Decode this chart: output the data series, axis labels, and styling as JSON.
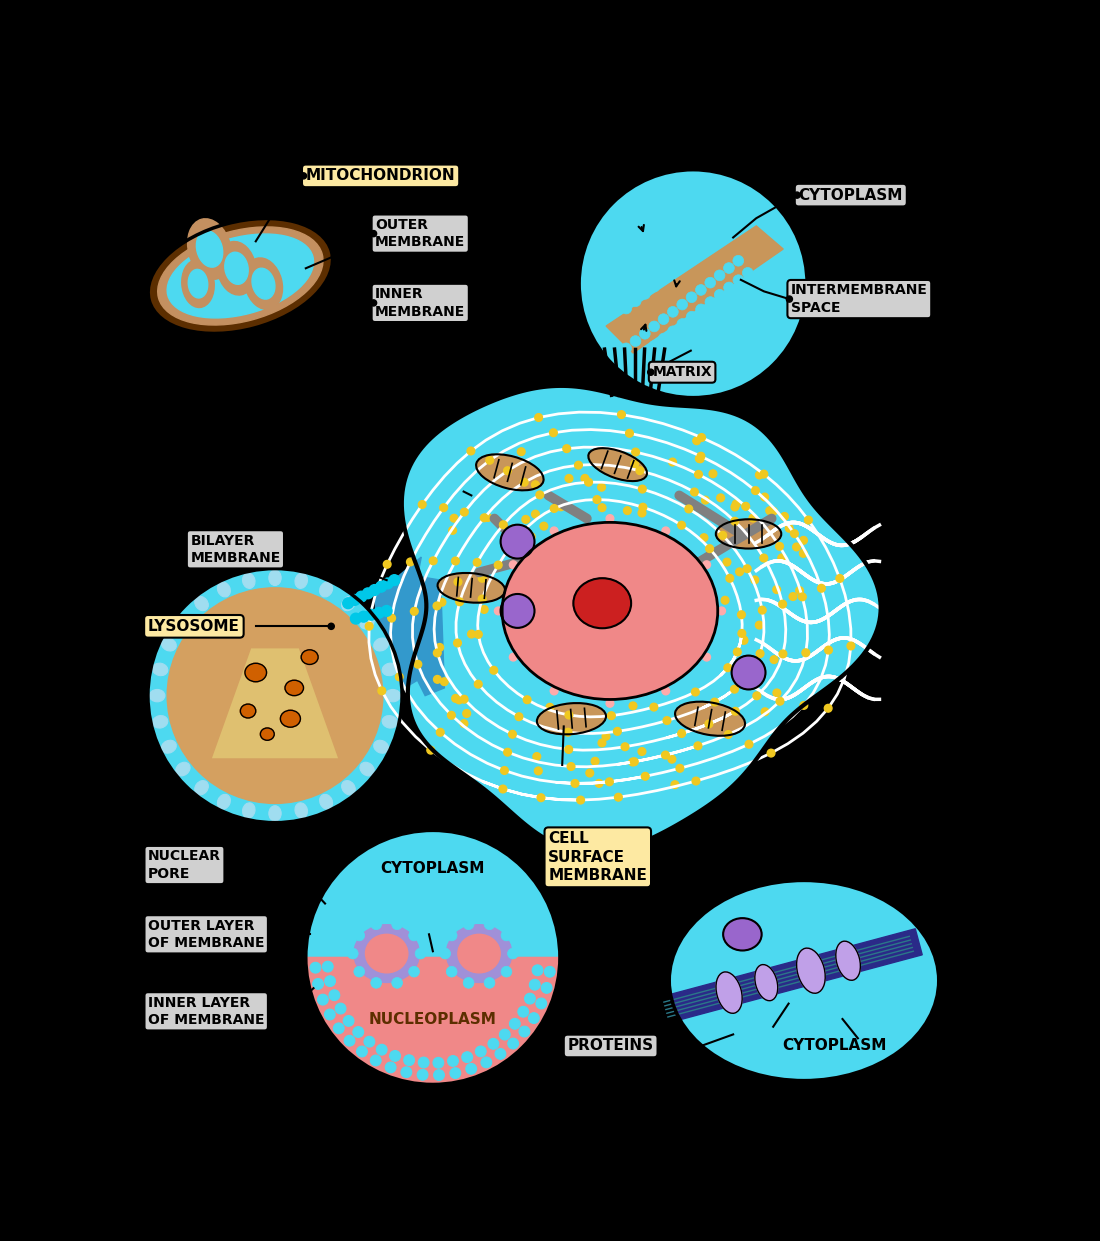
{
  "background_color": "#000000",
  "label_bg_tan": "#fde9a2",
  "label_bg_gray": "#d0d0d0",
  "light_cyan": "#4dd9f0",
  "bright_cyan": "#00c8e8",
  "dark_blue_cell": "#2a9fd0",
  "tan_color": "#c8965a",
  "light_tan": "#dba878",
  "dark_brown": "#5c2e00",
  "mid_brown": "#7a3f00",
  "pink_color": "#f08888",
  "red_color": "#dd0000",
  "purple_color": "#9966cc",
  "light_purple": "#c0a0e8",
  "orange_color": "#d07000",
  "yellow_color": "#f0c820",
  "gray_rod": "#808080",
  "white_color": "#ffffff",
  "navy_color": "#1a1a6a",
  "teal_color": "#2a8888",
  "labels": {
    "mitochondrion": "MITOCHONDRION",
    "outer_membrane": "OUTER\nMEMBRANE",
    "inner_membrane": "INNER\nMEMBRANE",
    "cytoplasm_top": "CYTOPLASM",
    "intermembrane_space": "INTERMEMBRANE\nSPACE",
    "matrix": "MATRIX",
    "bilayer_membrane": "BILAYER\nMEMBRANE",
    "lysosome": "LYSOSOME",
    "nuclear_pore": "NUCLEAR\nPORE",
    "outer_layer": "OUTER LAYER\nOF MEMBRANE",
    "inner_layer": "INNER LAYER\nOF MEMBRANE",
    "cytoplasm_bottom": "CYTOPLASM",
    "nucleoplasm": "NUCLEOPLASM",
    "cell_surface_membrane": "CELL\nSURFACE\nMEMBRANE",
    "proteins": "PROTEINS",
    "cytoplasm_right": "CYTOPLASM"
  }
}
